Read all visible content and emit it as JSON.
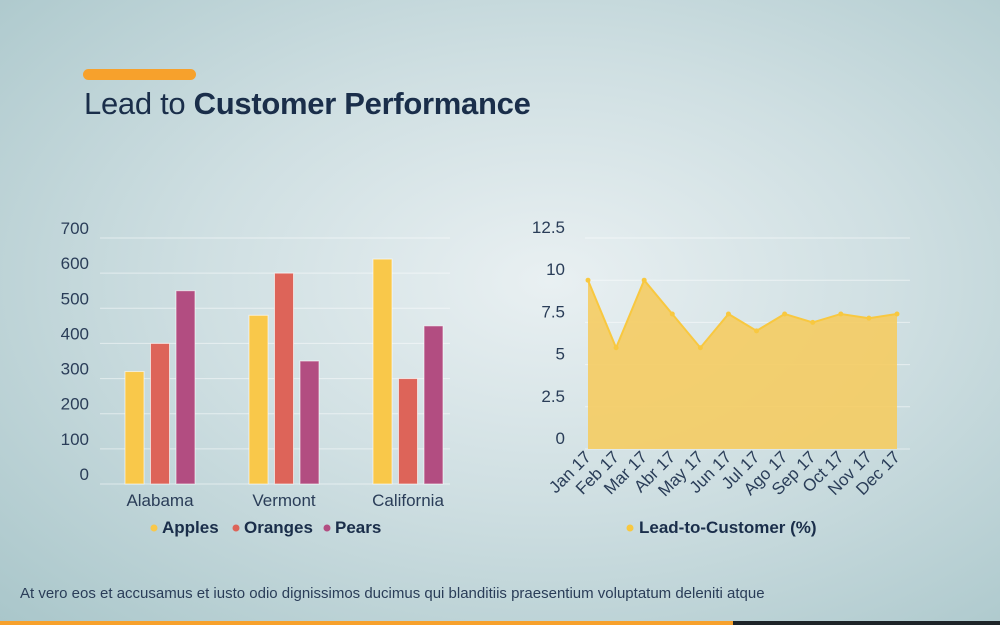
{
  "header": {
    "title_light": "Lead to",
    "title_bold": "Customer Performance"
  },
  "footer": {
    "text": "At vero eos et accusamus et iusto odio dignissimos ducimus qui blanditiis praesentium voluptatum deleniti atque"
  },
  "colors": {
    "accent": "#f7a12c",
    "apples": "#f9c84a",
    "oranges": "#dd6459",
    "pears": "#b24d81",
    "area": "#f5cc62",
    "dark": "#1a2e4a"
  },
  "chart_data": [
    {
      "type": "bar",
      "categories": [
        "Alabama",
        "Vermont",
        "California"
      ],
      "series": [
        {
          "name": "Apples",
          "values": [
            320,
            480,
            640
          ]
        },
        {
          "name": "Oranges",
          "values": [
            400,
            600,
            300
          ]
        },
        {
          "name": "Pears",
          "values": [
            550,
            350,
            450
          ]
        }
      ],
      "yticks": [
        "0",
        "100",
        "200",
        "300",
        "400",
        "500",
        "600",
        "700"
      ],
      "ylim": [
        0,
        700
      ],
      "grid": true,
      "legend": "bottom"
    },
    {
      "type": "area",
      "categories": [
        "Jan 17",
        "Feb 17",
        "Mar 17",
        "Abr 17",
        "May 17",
        "Jun 17",
        "Jul 17",
        "Ago 17",
        "Sep 17",
        "Oct 17",
        "Nov 17",
        "Dec 17"
      ],
      "series": [
        {
          "name": "Lead-to-Customer (%)",
          "values": [
            10,
            6,
            10,
            8,
            6,
            8,
            7,
            8,
            7.5,
            8,
            7.75,
            8
          ]
        }
      ],
      "yticks": [
        "0",
        "2.5",
        "5",
        "7.5",
        "10",
        "12.5"
      ],
      "ylim": [
        0,
        12.5
      ],
      "grid": true,
      "legend": "bottom"
    }
  ]
}
